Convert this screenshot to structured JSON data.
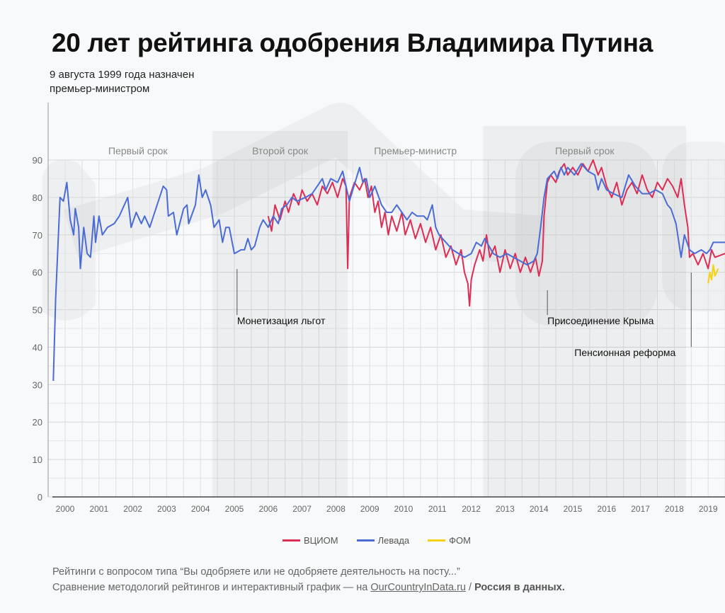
{
  "title": "20 лет рейтинга одобрения Владимира Путина",
  "note": "9 августа 1999 года назначен премьер-министром",
  "footer": {
    "line1": "Рейтинги с вопросом типа “Вы одобряете или не одобряете деятельность на посту...”",
    "line2_prefix": "Сравнение методологий рейтингов и интерактивный график — на ",
    "link": "OurCountryInData.ru",
    "separator": " / ",
    "brand": "Россия в данных."
  },
  "chart_data": {
    "type": "line",
    "title": "20 лет рейтинга одобрения Владимира Путина",
    "xlabel": "",
    "ylabel": "",
    "xlim": [
      1999.5,
      2019.5
    ],
    "ylim": [
      0,
      90
    ],
    "yticks": [
      0,
      10,
      20,
      30,
      40,
      50,
      60,
      70,
      80,
      90
    ],
    "xticks": [
      2000,
      2001,
      2002,
      2003,
      2004,
      2005,
      2006,
      2007,
      2008,
      2009,
      2010,
      2011,
      2012,
      2013,
      2014,
      2015,
      2016,
      2017,
      2018,
      2019
    ],
    "grid": true,
    "legend": "bottom-center",
    "periods": [
      {
        "label": "Первый срок",
        "from": 2000.0,
        "to": 2004.3,
        "shaded": false
      },
      {
        "label": "Второй срок",
        "from": 2004.35,
        "to": 2008.35,
        "shaded": true
      },
      {
        "label": "Премьер-министр",
        "from": 2008.35,
        "to": 2012.35,
        "shaded": false
      },
      {
        "label": "Первый срок",
        "from": 2012.35,
        "to": 2018.35,
        "shaded": true
      }
    ],
    "annotations": [
      {
        "label": "Монетизация льгот",
        "x": 2005.08
      },
      {
        "label": "Присоединение Крыма",
        "x": 2014.25
      },
      {
        "label": "Пенсионная реформа",
        "x": 2018.5
      }
    ],
    "series": [
      {
        "name": "ВЦИОМ",
        "color": "#dc2d55",
        "points": [
          [
            2006.0,
            75
          ],
          [
            2006.1,
            71
          ],
          [
            2006.2,
            78
          ],
          [
            2006.35,
            74
          ],
          [
            2006.5,
            79
          ],
          [
            2006.6,
            76
          ],
          [
            2006.75,
            81
          ],
          [
            2006.9,
            78
          ],
          [
            2007.0,
            82
          ],
          [
            2007.15,
            79
          ],
          [
            2007.3,
            81
          ],
          [
            2007.45,
            78
          ],
          [
            2007.6,
            83
          ],
          [
            2007.75,
            81
          ],
          [
            2007.9,
            84
          ],
          [
            2008.05,
            80
          ],
          [
            2008.2,
            85
          ],
          [
            2008.3,
            83
          ],
          [
            2008.35,
            61
          ],
          [
            2008.4,
            80
          ],
          [
            2008.55,
            84
          ],
          [
            2008.7,
            82
          ],
          [
            2008.85,
            85
          ],
          [
            2008.95,
            80
          ],
          [
            2009.05,
            83
          ],
          [
            2009.15,
            76
          ],
          [
            2009.25,
            79
          ],
          [
            2009.35,
            72
          ],
          [
            2009.45,
            76
          ],
          [
            2009.55,
            70
          ],
          [
            2009.65,
            75
          ],
          [
            2009.8,
            71
          ],
          [
            2009.95,
            76
          ],
          [
            2010.05,
            70
          ],
          [
            2010.2,
            74
          ],
          [
            2010.35,
            69
          ],
          [
            2010.5,
            73
          ],
          [
            2010.65,
            68
          ],
          [
            2010.8,
            72
          ],
          [
            2010.95,
            66
          ],
          [
            2011.1,
            70
          ],
          [
            2011.25,
            64
          ],
          [
            2011.4,
            67
          ],
          [
            2011.55,
            62
          ],
          [
            2011.7,
            66
          ],
          [
            2011.8,
            60
          ],
          [
            2011.9,
            57
          ],
          [
            2011.95,
            51
          ],
          [
            2012.0,
            58
          ],
          [
            2012.1,
            62
          ],
          [
            2012.25,
            66
          ],
          [
            2012.35,
            63
          ],
          [
            2012.45,
            70
          ],
          [
            2012.55,
            64
          ],
          [
            2012.7,
            67
          ],
          [
            2012.85,
            60
          ],
          [
            2013.0,
            66
          ],
          [
            2013.15,
            61
          ],
          [
            2013.3,
            65
          ],
          [
            2013.45,
            60
          ],
          [
            2013.6,
            64
          ],
          [
            2013.75,
            60
          ],
          [
            2013.9,
            64
          ],
          [
            2014.0,
            59
          ],
          [
            2014.1,
            63
          ],
          [
            2014.15,
            75
          ],
          [
            2014.25,
            84
          ],
          [
            2014.35,
            86
          ],
          [
            2014.5,
            84
          ],
          [
            2014.6,
            87
          ],
          [
            2014.75,
            89
          ],
          [
            2014.85,
            86
          ],
          [
            2015.0,
            88
          ],
          [
            2015.15,
            86
          ],
          [
            2015.3,
            89
          ],
          [
            2015.45,
            87
          ],
          [
            2015.6,
            90
          ],
          [
            2015.75,
            86
          ],
          [
            2015.85,
            88
          ],
          [
            2016.0,
            83
          ],
          [
            2016.15,
            80
          ],
          [
            2016.3,
            84
          ],
          [
            2016.45,
            78
          ],
          [
            2016.6,
            82
          ],
          [
            2016.75,
            84
          ],
          [
            2016.9,
            81
          ],
          [
            2017.05,
            86
          ],
          [
            2017.2,
            82
          ],
          [
            2017.35,
            80
          ],
          [
            2017.5,
            84
          ],
          [
            2017.65,
            82
          ],
          [
            2017.8,
            85
          ],
          [
            2017.95,
            83
          ],
          [
            2018.1,
            80
          ],
          [
            2018.2,
            85
          ],
          [
            2018.3,
            78
          ],
          [
            2018.4,
            72
          ],
          [
            2018.45,
            64
          ],
          [
            2018.55,
            65
          ],
          [
            2018.7,
            62
          ],
          [
            2018.85,
            65
          ],
          [
            2019.0,
            61
          ],
          [
            2019.1,
            66
          ],
          [
            2019.2,
            64
          ],
          [
            2019.5,
            65
          ]
        ]
      },
      {
        "name": "Левада",
        "color": "#4a6cd4",
        "points": [
          [
            1999.65,
            31
          ],
          [
            1999.72,
            53
          ],
          [
            1999.85,
            80
          ],
          [
            1999.95,
            79
          ],
          [
            2000.05,
            84
          ],
          [
            2000.15,
            74
          ],
          [
            2000.25,
            70
          ],
          [
            2000.3,
            77
          ],
          [
            2000.4,
            72
          ],
          [
            2000.45,
            61
          ],
          [
            2000.55,
            72
          ],
          [
            2000.65,
            65
          ],
          [
            2000.75,
            64
          ],
          [
            2000.85,
            75
          ],
          [
            2000.9,
            68
          ],
          [
            2001.0,
            75
          ],
          [
            2001.1,
            70
          ],
          [
            2001.25,
            72
          ],
          [
            2001.45,
            73
          ],
          [
            2001.6,
            75
          ],
          [
            2001.85,
            80
          ],
          [
            2001.95,
            72
          ],
          [
            2002.1,
            76
          ],
          [
            2002.25,
            73
          ],
          [
            2002.35,
            75
          ],
          [
            2002.5,
            72
          ],
          [
            2002.9,
            83
          ],
          [
            2003.0,
            82
          ],
          [
            2003.05,
            75
          ],
          [
            2003.2,
            76
          ],
          [
            2003.3,
            70
          ],
          [
            2003.5,
            77
          ],
          [
            2003.6,
            78
          ],
          [
            2003.65,
            73
          ],
          [
            2003.85,
            78
          ],
          [
            2003.95,
            86
          ],
          [
            2004.05,
            80
          ],
          [
            2004.15,
            82
          ],
          [
            2004.3,
            78
          ],
          [
            2004.4,
            72
          ],
          [
            2004.55,
            74
          ],
          [
            2004.65,
            68
          ],
          [
            2004.75,
            72
          ],
          [
            2004.85,
            72
          ],
          [
            2005.0,
            65
          ],
          [
            2005.2,
            66
          ],
          [
            2005.3,
            66
          ],
          [
            2005.4,
            69
          ],
          [
            2005.5,
            66
          ],
          [
            2005.6,
            67
          ],
          [
            2005.75,
            72
          ],
          [
            2005.85,
            74
          ],
          [
            2006.0,
            72
          ],
          [
            2006.15,
            75
          ],
          [
            2006.3,
            73
          ],
          [
            2006.4,
            77
          ],
          [
            2006.55,
            78
          ],
          [
            2006.7,
            80
          ],
          [
            2006.85,
            79
          ],
          [
            2007.1,
            80
          ],
          [
            2007.3,
            81
          ],
          [
            2007.45,
            83
          ],
          [
            2007.6,
            85
          ],
          [
            2007.7,
            82
          ],
          [
            2007.85,
            85
          ],
          [
            2008.05,
            84
          ],
          [
            2008.2,
            87
          ],
          [
            2008.3,
            83
          ],
          [
            2008.4,
            79
          ],
          [
            2008.5,
            82
          ],
          [
            2008.7,
            88
          ],
          [
            2008.8,
            84
          ],
          [
            2008.9,
            85
          ],
          [
            2009.0,
            80
          ],
          [
            2009.15,
            83
          ],
          [
            2009.35,
            78
          ],
          [
            2009.5,
            76
          ],
          [
            2009.65,
            76
          ],
          [
            2009.8,
            78
          ],
          [
            2009.95,
            76
          ],
          [
            2010.1,
            74
          ],
          [
            2010.25,
            76
          ],
          [
            2010.4,
            75
          ],
          [
            2010.6,
            75
          ],
          [
            2010.7,
            74
          ],
          [
            2010.85,
            78
          ],
          [
            2010.95,
            72
          ],
          [
            2011.05,
            70
          ],
          [
            2011.25,
            68
          ],
          [
            2011.45,
            66
          ],
          [
            2011.8,
            64
          ],
          [
            2012.0,
            65
          ],
          [
            2012.15,
            68
          ],
          [
            2012.3,
            67
          ],
          [
            2012.4,
            69
          ],
          [
            2012.65,
            65
          ],
          [
            2012.85,
            64
          ],
          [
            2013.05,
            65
          ],
          [
            2013.25,
            64
          ],
          [
            2013.45,
            63
          ],
          [
            2013.65,
            62
          ],
          [
            2013.85,
            63
          ],
          [
            2013.95,
            65
          ],
          [
            2014.05,
            72
          ],
          [
            2014.15,
            80
          ],
          [
            2014.25,
            85
          ],
          [
            2014.35,
            86
          ],
          [
            2014.45,
            87
          ],
          [
            2014.55,
            85
          ],
          [
            2014.65,
            88
          ],
          [
            2014.75,
            86
          ],
          [
            2014.85,
            88
          ],
          [
            2015.05,
            86
          ],
          [
            2015.25,
            89
          ],
          [
            2015.45,
            87
          ],
          [
            2015.65,
            86
          ],
          [
            2015.75,
            82
          ],
          [
            2015.85,
            85
          ],
          [
            2016.0,
            82
          ],
          [
            2016.2,
            81
          ],
          [
            2016.45,
            80
          ],
          [
            2016.65,
            86
          ],
          [
            2016.85,
            83
          ],
          [
            2017.05,
            81
          ],
          [
            2017.25,
            81
          ],
          [
            2017.45,
            82
          ],
          [
            2017.65,
            81
          ],
          [
            2017.8,
            78
          ],
          [
            2017.9,
            77
          ],
          [
            2018.05,
            73
          ],
          [
            2018.2,
            64
          ],
          [
            2018.3,
            70
          ],
          [
            2018.45,
            66
          ],
          [
            2018.6,
            65
          ],
          [
            2018.8,
            66
          ],
          [
            2018.95,
            65
          ],
          [
            2019.05,
            66
          ],
          [
            2019.15,
            68
          ],
          [
            2019.5,
            68
          ]
        ]
      },
      {
        "name": "ФОМ",
        "color": "#f5d10f",
        "points": [
          [
            2019.0,
            57
          ],
          [
            2019.05,
            60
          ],
          [
            2019.1,
            58
          ],
          [
            2019.15,
            62
          ],
          [
            2019.2,
            59
          ],
          [
            2019.3,
            61
          ]
        ]
      }
    ]
  }
}
